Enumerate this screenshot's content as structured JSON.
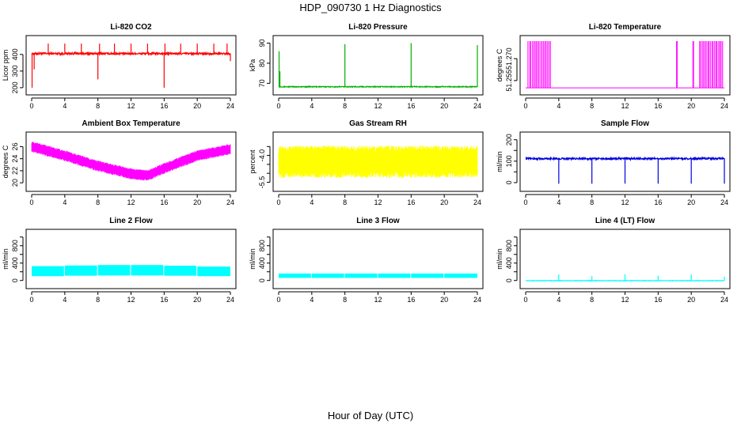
{
  "figure": {
    "title": "HDP_090730  1 Hz Diagnostics",
    "xlabel": "Hour of Day (UTC)"
  },
  "chart_data": [
    {
      "type": "line",
      "title": "Li-820 CO2",
      "ylabel": "Licor ppm",
      "color": "#ff0000",
      "xlim": [
        0,
        24
      ],
      "ylim": [
        190,
        480
      ],
      "x_ticks": [
        0,
        4,
        8,
        12,
        16,
        20,
        24
      ],
      "y_ticks": [
        200,
        300,
        400
      ],
      "baseline": 405,
      "noise": 6,
      "mode": "spikes",
      "spikes": [
        [
          0.05,
          200
        ],
        [
          0.3,
          310
        ],
        [
          2,
          465
        ],
        [
          4,
          465
        ],
        [
          6,
          465
        ],
        [
          8,
          250
        ],
        [
          8.2,
          465
        ],
        [
          10,
          465
        ],
        [
          12,
          465
        ],
        [
          14,
          465
        ],
        [
          16,
          200
        ],
        [
          16.1,
          465
        ],
        [
          18,
          465
        ],
        [
          20,
          465
        ],
        [
          22,
          465
        ],
        [
          23.6,
          465
        ],
        [
          24,
          360
        ]
      ]
    },
    {
      "type": "line",
      "title": "Li-820 Pressure",
      "ylabel": "kPa",
      "color": "#00b000",
      "xlim": [
        0,
        24
      ],
      "ylim": [
        67,
        91
      ],
      "x_ticks": [
        0,
        4,
        8,
        12,
        16,
        20,
        24
      ],
      "y_ticks": [
        70,
        80,
        90
      ],
      "baseline": 68.3,
      "noise": 0.2,
      "mode": "spikes",
      "spikes": [
        [
          0.05,
          86
        ],
        [
          0.15,
          76
        ],
        [
          8,
          89.5
        ],
        [
          16,
          90
        ],
        [
          24,
          89
        ]
      ]
    },
    {
      "type": "line",
      "title": "Li-820 Temperature",
      "ylabel": "degrees C",
      "color": "#ff00ff",
      "xlim": [
        0,
        24
      ],
      "ylim": [
        51.249,
        51.282
      ],
      "x_ticks": [
        0,
        4,
        8,
        12,
        16,
        20,
        24
      ],
      "y_ticks": [
        51.255,
        51.27
      ],
      "y_tick_labels": [
        "51.255",
        "51.270"
      ],
      "baseline": 51.25,
      "noise": 0,
      "mode": "toggles",
      "toggle_ranges": [
        [
          0.3,
          3.0
        ],
        [
          18.2,
          18.3
        ],
        [
          20.2,
          20.3
        ],
        [
          21.0,
          23.8
        ]
      ],
      "toggle_high": 51.282
    },
    {
      "type": "line",
      "title": "Ambient Box Temperature",
      "ylabel": "degrees C",
      "color": "#ff00ff",
      "xlim": [
        0,
        24
      ],
      "ylim": [
        19.5,
        27.5
      ],
      "x_ticks": [
        0,
        4,
        8,
        12,
        16,
        20,
        24
      ],
      "y_ticks": [
        20,
        22,
        24,
        26
      ],
      "mode": "band",
      "center": [
        [
          0,
          26.0
        ],
        [
          4,
          24.5
        ],
        [
          8,
          22.8
        ],
        [
          12,
          21.5
        ],
        [
          14,
          21.2
        ],
        [
          16,
          22.4
        ],
        [
          20,
          24.5
        ],
        [
          24,
          25.6
        ]
      ],
      "half_width": 0.9
    },
    {
      "type": "line",
      "title": "Gas Stream RH",
      "ylabel": "percent",
      "color": "#ffff00",
      "xlim": [
        0,
        24
      ],
      "ylim": [
        -5.7,
        -3.0
      ],
      "x_ticks": [
        0,
        4,
        8,
        12,
        16,
        20,
        24
      ],
      "y_ticks": [
        -5.5,
        -4.0
      ],
      "y_ticks_minor": [
        -5.0,
        -4.5,
        -3.5
      ],
      "y_tick_labels": [
        "-5.5",
        "-4.0"
      ],
      "mode": "band",
      "center": [
        [
          0,
          -4.35
        ],
        [
          24,
          -4.35
        ]
      ],
      "half_width": 0.9
    },
    {
      "type": "line",
      "title": "Sample Flow",
      "ylabel": "ml/min",
      "color": "#0000dd",
      "xlim": [
        0,
        24
      ],
      "ylim": [
        -15,
        210
      ],
      "x_ticks": [
        0,
        4,
        8,
        12,
        16,
        20,
        24
      ],
      "y_ticks": [
        0,
        100,
        200
      ],
      "y_ticks_minor": [
        50,
        150
      ],
      "baseline": 112,
      "noise": 4,
      "mode": "spikes",
      "spikes": [
        [
          4,
          -5
        ],
        [
          8,
          -5
        ],
        [
          12,
          -5
        ],
        [
          16,
          -5
        ],
        [
          20,
          -5
        ],
        [
          24,
          -5
        ]
      ]
    },
    {
      "type": "line",
      "title": "Line 2 Flow",
      "ylabel": "ml/min",
      "color": "#00ffff",
      "xlim": [
        0,
        24
      ],
      "ylim": [
        -60,
        1050
      ],
      "x_ticks": [
        0,
        4,
        8,
        12,
        16,
        20,
        24
      ],
      "y_ticks": [
        0,
        400,
        800
      ],
      "y_ticks_minor": [
        200,
        600,
        1000
      ],
      "mode": "blocks",
      "blocks": [
        [
          0,
          3.9,
          100,
          330
        ],
        [
          4.0,
          7.9,
          110,
          345
        ],
        [
          8.0,
          11.9,
          115,
          355
        ],
        [
          12.0,
          15.9,
          115,
          355
        ],
        [
          16.0,
          19.9,
          110,
          340
        ],
        [
          20.0,
          24,
          100,
          320
        ]
      ]
    },
    {
      "type": "line",
      "title": "Line 3 Flow",
      "ylabel": "ml/min",
      "color": "#00ffff",
      "xlim": [
        0,
        24
      ],
      "ylim": [
        -60,
        1050
      ],
      "x_ticks": [
        0,
        4,
        8,
        12,
        16,
        20,
        24
      ],
      "y_ticks": [
        0,
        400,
        800
      ],
      "y_ticks_minor": [
        200,
        600,
        1000
      ],
      "mode": "blocks",
      "blocks": [
        [
          0,
          3.9,
          60,
          160
        ],
        [
          4.0,
          7.9,
          60,
          160
        ],
        [
          8.0,
          11.9,
          60,
          160
        ],
        [
          12.0,
          15.9,
          60,
          160
        ],
        [
          16.0,
          19.9,
          60,
          160
        ],
        [
          20.0,
          24,
          60,
          160
        ]
      ]
    },
    {
      "type": "line",
      "title": "Line 4 (LT) Flow",
      "ylabel": "ml/min",
      "color": "#00ffff",
      "xlim": [
        0,
        24
      ],
      "ylim": [
        -60,
        1050
      ],
      "x_ticks": [
        0,
        4,
        8,
        12,
        16,
        20,
        24
      ],
      "y_ticks": [
        0,
        400,
        800
      ],
      "y_ticks_minor": [
        200,
        600,
        1000
      ],
      "baseline": -5,
      "noise": 5,
      "mode": "spikes",
      "spikes": [
        [
          4,
          140
        ],
        [
          8,
          100
        ],
        [
          12,
          140
        ],
        [
          16,
          110
        ],
        [
          20,
          140
        ],
        [
          24,
          90
        ]
      ]
    }
  ]
}
